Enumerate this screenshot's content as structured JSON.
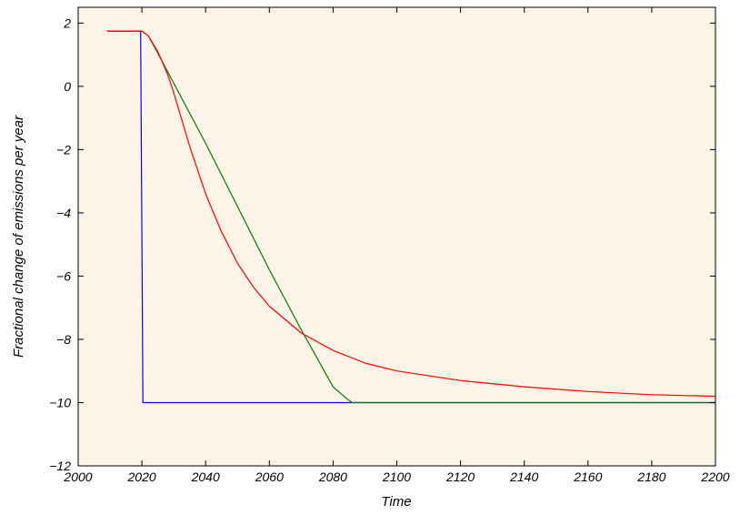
{
  "chart_data": {
    "type": "line",
    "title": "",
    "xlabel": "Time",
    "ylabel": "Fractional change of emissions per year",
    "xlim": [
      2000,
      2200
    ],
    "ylim": [
      -12,
      2.5
    ],
    "xticks": [
      2000,
      2020,
      2040,
      2060,
      2080,
      2100,
      2120,
      2140,
      2160,
      2180,
      2200
    ],
    "yticks": [
      -12,
      -10,
      -8,
      -6,
      -4,
      -2,
      0,
      2
    ],
    "grid": false,
    "legend": "none",
    "colors": {
      "background": "#fdf3e6",
      "blue": "#0000ff",
      "green": "#007a00",
      "red": "#ff0000"
    },
    "series": [
      {
        "color": "blue",
        "x": [
          2009,
          2019.6,
          2020.3,
          2200
        ],
        "y": [
          1.75,
          1.75,
          -10,
          -10
        ]
      },
      {
        "color": "green",
        "x": [
          2009,
          2020,
          2022,
          2025,
          2030,
          2040,
          2050,
          2060,
          2070,
          2080,
          2084,
          2086,
          2100,
          2150,
          2200
        ],
        "y": [
          1.75,
          1.75,
          1.6,
          1.05,
          0.1,
          -1.8,
          -3.8,
          -5.8,
          -7.7,
          -9.5,
          -9.85,
          -10,
          -10,
          -10,
          -10
        ]
      },
      {
        "color": "red",
        "x": [
          2009,
          2020,
          2022,
          2025,
          2028,
          2030,
          2035,
          2040,
          2045,
          2050,
          2055,
          2060,
          2070,
          2080,
          2090,
          2100,
          2120,
          2140,
          2160,
          2180,
          2200
        ],
        "y": [
          1.75,
          1.75,
          1.6,
          1.1,
          0.4,
          -0.2,
          -1.9,
          -3.4,
          -4.6,
          -5.6,
          -6.35,
          -6.95,
          -7.8,
          -8.35,
          -8.75,
          -9.0,
          -9.3,
          -9.5,
          -9.65,
          -9.75,
          -9.8
        ]
      }
    ]
  }
}
